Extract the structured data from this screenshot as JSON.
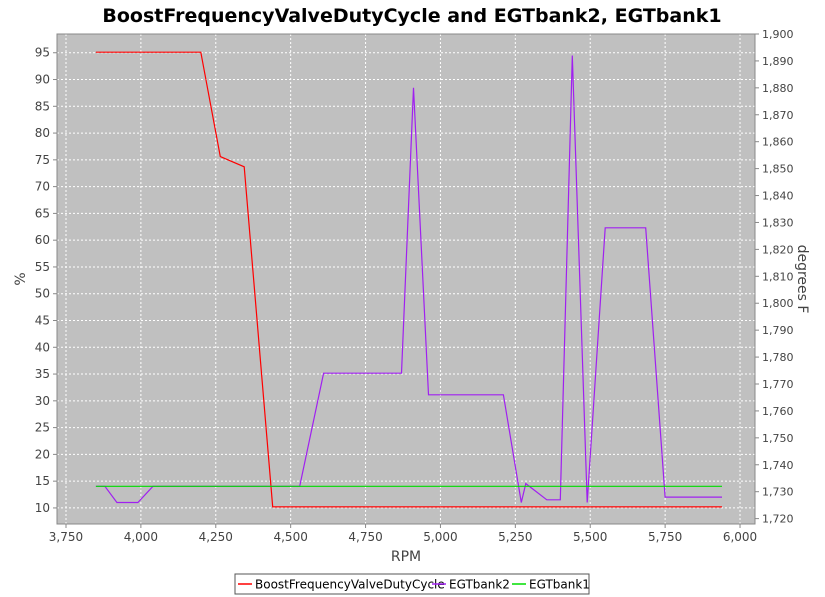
{
  "chart_data": {
    "type": "line",
    "title": "BoostFrequencyValveDutyCycle and EGTbank2, EGTbank1",
    "xlabel": "RPM",
    "ylabel_left": "%",
    "ylabel_right": "degrees F",
    "xlim": [
      3720,
      6050
    ],
    "ylim_left": [
      7,
      98.5
    ],
    "ylim_right": [
      1718,
      1900
    ],
    "x_ticks": [
      3750,
      4000,
      4250,
      4500,
      4750,
      5000,
      5250,
      5500,
      5750,
      6000
    ],
    "x_tick_labels": [
      "3,750",
      "4,000",
      "4,250",
      "4,500",
      "4,750",
      "5,000",
      "5,250",
      "5,500",
      "5,750",
      "6,000"
    ],
    "y_left_ticks": [
      10,
      15,
      20,
      25,
      30,
      35,
      40,
      45,
      50,
      55,
      60,
      65,
      70,
      75,
      80,
      85,
      90,
      95
    ],
    "y_right_ticks": [
      1720,
      1730,
      1740,
      1750,
      1760,
      1770,
      1780,
      1790,
      1800,
      1810,
      1820,
      1830,
      1840,
      1850,
      1860,
      1870,
      1880,
      1890,
      1900
    ],
    "y_right_tick_labels": [
      "1,720",
      "1,730",
      "1,740",
      "1,750",
      "1,760",
      "1,770",
      "1,780",
      "1,790",
      "1,800",
      "1,810",
      "1,820",
      "1,830",
      "1,840",
      "1,850",
      "1,860",
      "1,870",
      "1,880",
      "1,890",
      "1,900"
    ],
    "grid": true,
    "legend_position": "bottom",
    "series": [
      {
        "name": "BoostFrequencyValveDutyCycle",
        "axis": "left",
        "color": "#ff0000",
        "x": [
          3850,
          4200,
          4265,
          4345,
          4440,
          5940
        ],
        "y": [
          95.1,
          95.1,
          75.6,
          73.7,
          10.2,
          10.2
        ]
      },
      {
        "name": "EGTbank2",
        "axis": "right",
        "color": "#a020f0",
        "x": [
          3850,
          3880,
          3920,
          3990,
          4040,
          4530,
          4610,
          4870,
          4910,
          4960,
          5210,
          5270,
          5285,
          5355,
          5400,
          5440,
          5490,
          5550,
          5685,
          5750,
          5940
        ],
        "y": [
          1732,
          1732,
          1726,
          1726,
          1732,
          1732,
          1774,
          1774,
          1880,
          1766,
          1766,
          1726,
          1733,
          1727,
          1727,
          1892,
          1726,
          1828,
          1828,
          1728,
          1728
        ]
      },
      {
        "name": "EGTbank1",
        "axis": "right",
        "color": "#00dd00",
        "x": [
          3850,
          5940
        ],
        "y": [
          1732,
          1732
        ]
      }
    ]
  }
}
